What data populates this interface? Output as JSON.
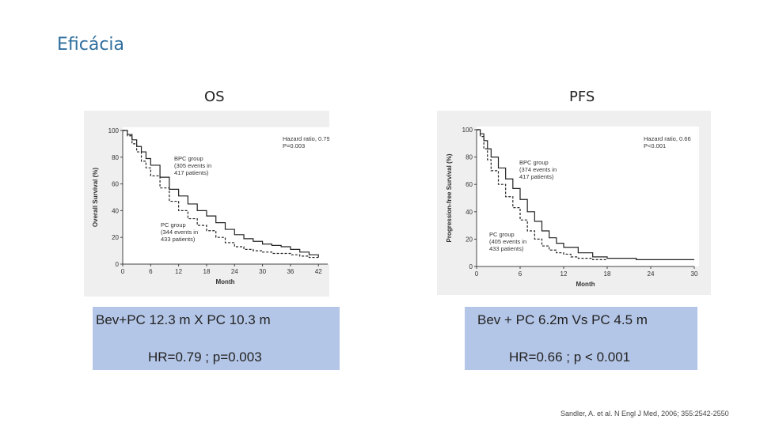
{
  "slide": {
    "title": "Eficácia",
    "citation": "Sandler, A. et al. N Engl J Med, 2006; 355:2542-2550"
  },
  "panels": [
    {
      "heading": "OS",
      "summary_line1": "Bev+PC 12.3 m  X  PC 10.3 m",
      "summary_line2": "HR=0.79 ; p=0.003"
    },
    {
      "heading": "PFS",
      "summary_line1": "Bev + PC 6.2m  Vs  PC 4.5 m",
      "summary_line2": "HR=0.66 ; p < 0.001"
    }
  ],
  "chart_data": [
    {
      "type": "line",
      "title": "",
      "xlabel": "Month",
      "ylabel": "Overall Survival (%)",
      "xlim": [
        0,
        44
      ],
      "ylim": [
        0,
        100
      ],
      "xticks": [
        0,
        6,
        12,
        18,
        24,
        30,
        36,
        42
      ],
      "yticks": [
        0,
        20,
        40,
        60,
        80,
        100
      ],
      "grid": false,
      "annotations": [
        {
          "lines": [
            "Hazard ratio, 0.79",
            "P=0.003"
          ]
        },
        {
          "lines": [
            "BPC group",
            "(305 events in",
            "417 patients)"
          ]
        },
        {
          "lines": [
            "PC group",
            "(344 events in",
            "433 patients)"
          ]
        }
      ],
      "series": [
        {
          "name": "BPC group",
          "style": "solid",
          "x": [
            0,
            1,
            2,
            3,
            4,
            5,
            6,
            8,
            10,
            12,
            14,
            16,
            18,
            20,
            22,
            24,
            26,
            28,
            30,
            32,
            34,
            36,
            38,
            40,
            42
          ],
          "y": [
            100,
            97,
            93,
            88,
            84,
            79,
            74,
            65,
            56,
            51,
            45,
            40,
            36,
            31,
            26,
            22,
            19,
            17,
            15,
            14,
            13,
            11,
            9,
            7,
            5
          ]
        },
        {
          "name": "PC group",
          "style": "dashed",
          "x": [
            0,
            1,
            2,
            3,
            4,
            5,
            6,
            8,
            10,
            12,
            14,
            16,
            18,
            20,
            22,
            24,
            26,
            28,
            30,
            32,
            34,
            36,
            38,
            40,
            42
          ],
          "y": [
            100,
            96,
            90,
            84,
            77,
            72,
            66,
            57,
            47,
            40,
            34,
            29,
            25,
            20,
            16,
            13,
            11,
            10,
            9,
            8,
            8,
            7,
            6,
            5,
            5
          ]
        }
      ]
    },
    {
      "type": "line",
      "title": "",
      "xlabel": "Month",
      "ylabel": "Progression-free Survival (%)",
      "xlim": [
        0,
        30
      ],
      "ylim": [
        0,
        100
      ],
      "xticks": [
        0,
        6,
        12,
        18,
        24,
        30
      ],
      "yticks": [
        0,
        20,
        40,
        60,
        80,
        100
      ],
      "grid": false,
      "annotations": [
        {
          "lines": [
            "Hazard ratio, 0.66",
            "P<0.001"
          ]
        },
        {
          "lines": [
            "BPC group",
            "(374 events in",
            "417 patients)"
          ]
        },
        {
          "lines": [
            "PC group",
            "(405 events in",
            "433 patients)"
          ]
        }
      ],
      "series": [
        {
          "name": "BPC group",
          "style": "solid",
          "x": [
            0,
            0.5,
            1,
            1.5,
            2,
            3,
            4,
            5,
            6,
            7,
            8,
            9,
            10,
            11,
            12,
            14,
            16,
            18,
            20,
            22,
            24,
            26,
            28,
            30
          ],
          "y": [
            100,
            97,
            92,
            86,
            80,
            72,
            64,
            57,
            49,
            40,
            33,
            26,
            21,
            17,
            14,
            10,
            7,
            6,
            6,
            5,
            5,
            5,
            5,
            5
          ]
        },
        {
          "name": "PC group",
          "style": "dashed",
          "x": [
            0,
            0.5,
            1,
            1.5,
            2,
            3,
            4,
            5,
            6,
            7,
            8,
            9,
            10,
            11,
            12,
            13,
            14,
            16,
            18
          ],
          "y": [
            100,
            95,
            86,
            78,
            70,
            60,
            51,
            43,
            34,
            26,
            20,
            15,
            12,
            10,
            9,
            7,
            6,
            5,
            5
          ]
        }
      ]
    }
  ]
}
